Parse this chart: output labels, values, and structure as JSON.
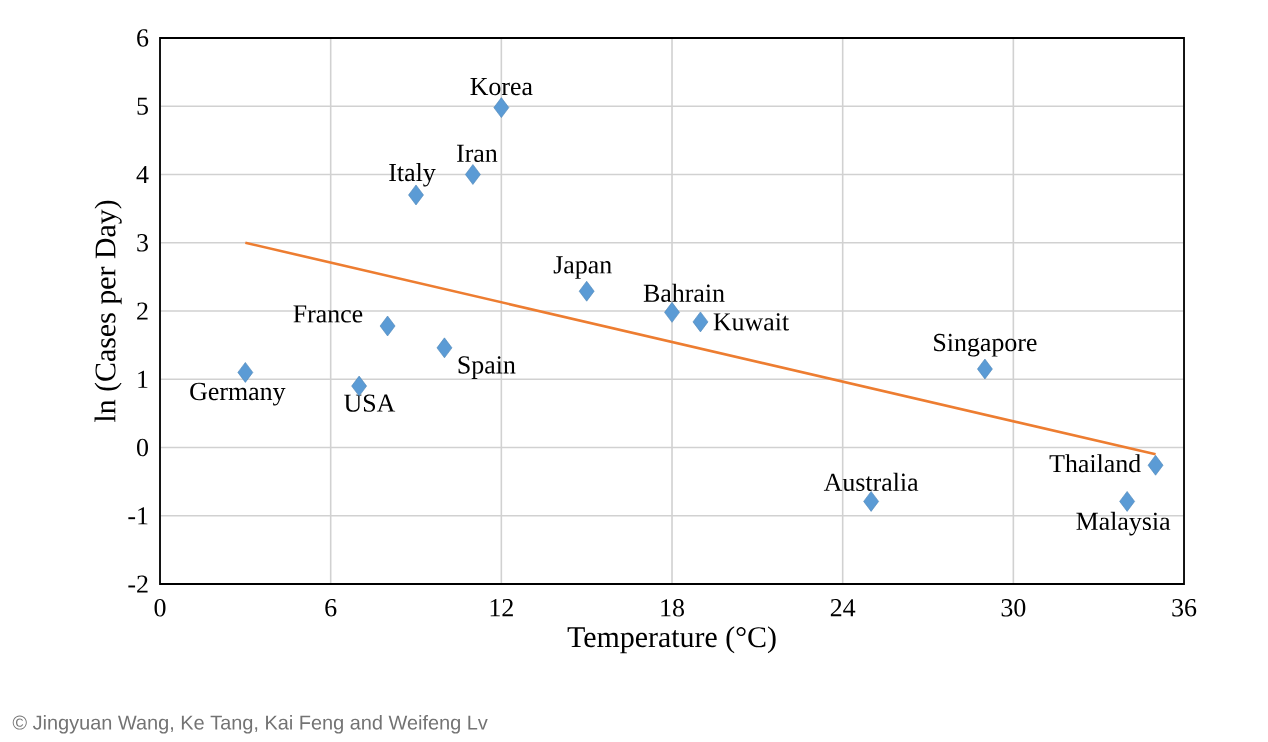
{
  "chart_data": {
    "type": "scatter",
    "xlabel": "Temperature (°C)",
    "ylabel": "ln (Cases per Day)",
    "xlim": [
      0,
      36
    ],
    "ylim": [
      -2,
      6
    ],
    "xticks": [
      0,
      6,
      12,
      18,
      24,
      30,
      36
    ],
    "yticks": [
      -2,
      -1,
      0,
      1,
      2,
      3,
      4,
      5,
      6
    ],
    "grid": true,
    "series": [
      {
        "color": "#5b9bd5",
        "marker": "diamond",
        "x": [
          3,
          7,
          8,
          10,
          9,
          11,
          12,
          15,
          18,
          19,
          29,
          25,
          35,
          34
        ],
        "values": [
          1.1,
          0.9,
          1.78,
          1.46,
          3.7,
          4.0,
          4.98,
          2.29,
          1.98,
          1.84,
          1.15,
          -0.79,
          -0.26,
          -0.79
        ]
      },
      {
        "type": "line",
        "color": "#ed7d31",
        "x": [
          3,
          35
        ],
        "values": [
          3.0,
          -0.1
        ]
      }
    ],
    "annotations": [
      {
        "text": "Germany",
        "x": 3,
        "y": 1.1
      },
      {
        "text": "USA",
        "x": 7,
        "y": 0.9
      },
      {
        "text": "France",
        "x": 8,
        "y": 1.78
      },
      {
        "text": "Spain",
        "x": 10,
        "y": 1.46
      },
      {
        "text": "Italy",
        "x": 9,
        "y": 3.7
      },
      {
        "text": "Iran",
        "x": 11,
        "y": 4.0
      },
      {
        "text": "Korea",
        "x": 12,
        "y": 4.98
      },
      {
        "text": "Japan",
        "x": 15,
        "y": 2.29
      },
      {
        "text": "Bahrain",
        "x": 18,
        "y": 1.98
      },
      {
        "text": "Kuwait",
        "x": 19,
        "y": 1.84
      },
      {
        "text": "Singapore",
        "x": 29,
        "y": 1.15
      },
      {
        "text": "Australia",
        "x": 25,
        "y": -0.79
      },
      {
        "text": "Thailand",
        "x": 35,
        "y": -0.26
      },
      {
        "text": "Malaysia",
        "x": 34,
        "y": -0.79
      },
      "© Jingyuan Wang, Ke Tang, Kai Feng and Weifeng Lv"
    ]
  }
}
